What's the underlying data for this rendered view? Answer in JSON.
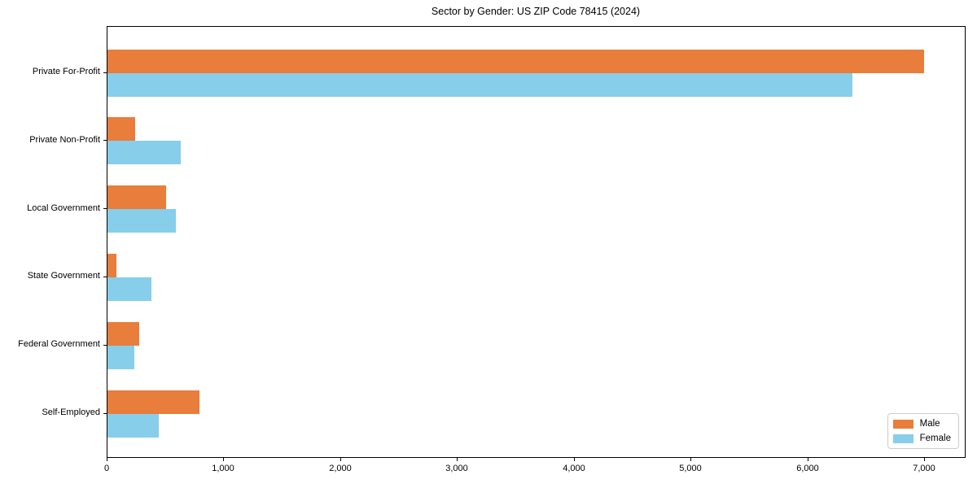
{
  "chart_data": {
    "type": "bar",
    "orientation": "horizontal",
    "title": "Sector by Gender: US ZIP Code 78415 (2024)",
    "categories": [
      "Private For-Profit",
      "Private Non-Profit",
      "Local Government",
      "State Government",
      "Federal Government",
      "Self-Employed"
    ],
    "series": [
      {
        "name": "Male",
        "color": "#e87d3c",
        "values": [
          6990,
          240,
          500,
          80,
          270,
          785
        ]
      },
      {
        "name": "Female",
        "color": "#87ceeb",
        "values": [
          6380,
          630,
          585,
          375,
          230,
          440
        ]
      }
    ],
    "xlim": [
      0,
      7340
    ],
    "xticks": [
      0,
      1000,
      2000,
      3000,
      4000,
      5000,
      6000,
      7000
    ],
    "xtick_labels": [
      "0",
      "1,000",
      "2,000",
      "3,000",
      "4,000",
      "5,000",
      "6,000",
      "7,000"
    ],
    "ylabel": "",
    "xlabel": "",
    "grid": false,
    "legend": {
      "position": "lower right",
      "entries": [
        "Male",
        "Female"
      ]
    }
  }
}
